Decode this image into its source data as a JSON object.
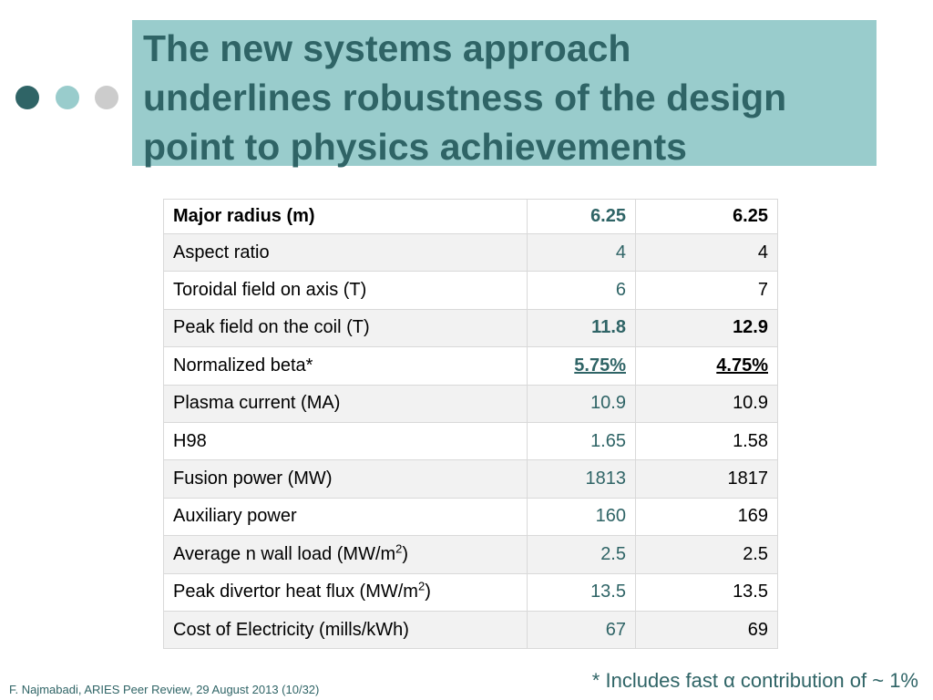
{
  "slide": {
    "title_line1": "The new systems approach",
    "title_line2": "underlines robustness of the design",
    "title_line3": "point to physics achievements",
    "footnote": "* Includes fast α contribution of ~ 1%",
    "footer": "F. Najmabadi, ARIES Peer Review, 29 August 2013 (10/32)"
  },
  "table": {
    "rows": [
      {
        "label": "Major radius (m)",
        "v1": "6.25",
        "v2": "6.25"
      },
      {
        "label": "Aspect ratio",
        "v1": "4",
        "v2": "4"
      },
      {
        "label": "Toroidal field on axis (T)",
        "v1": "6",
        "v2": "7"
      },
      {
        "label": "Peak field on the coil (T)",
        "v1": "11.8",
        "v2": "12.9"
      },
      {
        "label": "Normalized beta*",
        "v1": "5.75%",
        "v2": "4.75%"
      },
      {
        "label": "Plasma current (MA)",
        "v1": "10.9",
        "v2": "10.9"
      },
      {
        "label": "H98",
        "v1": "1.65",
        "v2": "1.58"
      },
      {
        "label": "Fusion power (MW)",
        "v1": "1813",
        "v2": "1817"
      },
      {
        "label": "Auxiliary power",
        "v1": "160",
        "v2": "169"
      },
      {
        "label_pre": "Average n wall load (MW/m",
        "label_sup": "2",
        "label_post": ")",
        "v1": "2.5",
        "v2": "2.5"
      },
      {
        "label_pre": "Peak divertor heat flux (MW/m",
        "label_sup": "2",
        "label_post": ")",
        "v1": "13.5",
        "v2": "13.5"
      },
      {
        "label": "Cost of Electricity (mills/kWh)",
        "v1": "67",
        "v2": "69"
      }
    ]
  },
  "colors": {
    "accent_dark": "#2f6466",
    "accent_light": "#99cccc",
    "dot_gray": "#cccccc"
  }
}
